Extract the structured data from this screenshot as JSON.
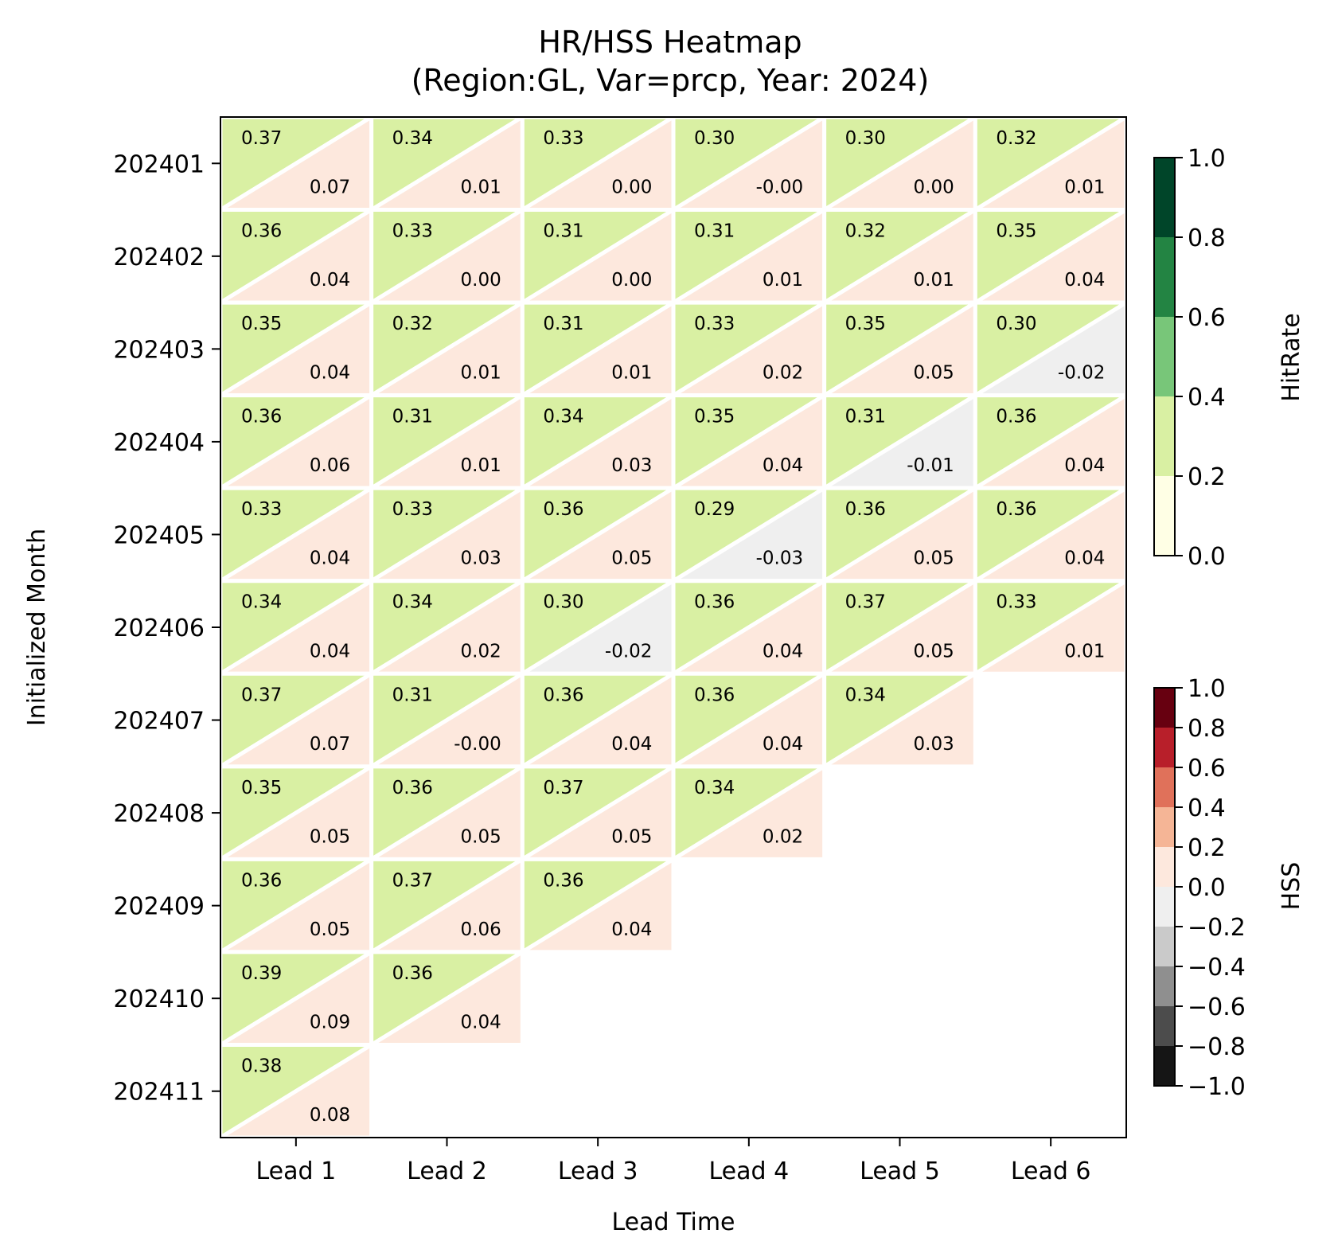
{
  "chart_data": {
    "type": "heatmap",
    "title_line1": "HR/HSS Heatmap",
    "title_line2": "(Region:GL, Var=prcp, Year: 2024)",
    "xlabel": "Lead Time",
    "ylabel": "Initialized Month",
    "x_categories": [
      "Lead 1",
      "Lead 2",
      "Lead 3",
      "Lead 4",
      "Lead 5",
      "Lead 6"
    ],
    "y_categories": [
      "202401",
      "202402",
      "202403",
      "202404",
      "202405",
      "202406",
      "202407",
      "202408",
      "202409",
      "202410",
      "202411"
    ],
    "hit_rate": [
      [
        "0.37",
        "0.34",
        "0.33",
        "0.30",
        "0.30",
        "0.32"
      ],
      [
        "0.36",
        "0.33",
        "0.31",
        "0.31",
        "0.32",
        "0.35"
      ],
      [
        "0.35",
        "0.32",
        "0.31",
        "0.33",
        "0.35",
        "0.30"
      ],
      [
        "0.36",
        "0.31",
        "0.34",
        "0.35",
        "0.31",
        "0.36"
      ],
      [
        "0.33",
        "0.33",
        "0.36",
        "0.29",
        "0.36",
        "0.36"
      ],
      [
        "0.34",
        "0.34",
        "0.30",
        "0.36",
        "0.37",
        "0.33"
      ],
      [
        "0.37",
        "0.31",
        "0.36",
        "0.36",
        "0.34",
        null
      ],
      [
        "0.35",
        "0.36",
        "0.37",
        "0.34",
        null,
        null
      ],
      [
        "0.36",
        "0.37",
        "0.36",
        null,
        null,
        null
      ],
      [
        "0.39",
        "0.36",
        null,
        null,
        null,
        null
      ],
      [
        "0.38",
        null,
        null,
        null,
        null,
        null
      ]
    ],
    "hss": [
      [
        "0.07",
        "0.01",
        "0.00",
        "-0.00",
        "0.00",
        "0.01"
      ],
      [
        "0.04",
        "0.00",
        "0.00",
        "0.01",
        "0.01",
        "0.04"
      ],
      [
        "0.04",
        "0.01",
        "0.01",
        "0.02",
        "0.05",
        "-0.02"
      ],
      [
        "0.06",
        "0.01",
        "0.03",
        "0.04",
        "-0.01",
        "0.04"
      ],
      [
        "0.04",
        "0.03",
        "0.05",
        "-0.03",
        "0.05",
        "0.04"
      ],
      [
        "0.04",
        "0.02",
        "-0.02",
        "0.04",
        "0.05",
        "0.01"
      ],
      [
        "0.07",
        "-0.00",
        "0.04",
        "0.04",
        "0.03",
        null
      ],
      [
        "0.05",
        "0.05",
        "0.05",
        "0.02",
        null,
        null
      ],
      [
        "0.05",
        "0.06",
        "0.04",
        null,
        null,
        null
      ],
      [
        "0.09",
        "0.04",
        null,
        null,
        null,
        null
      ],
      [
        "0.08",
        null,
        null,
        null,
        null,
        null
      ]
    ],
    "colorbar_hitrate": {
      "label": "HitRate",
      "range": [
        0,
        1
      ],
      "ticks": [
        "0.0",
        "0.2",
        "0.4",
        "0.6",
        "0.8",
        "1.0"
      ],
      "bins": [
        0.0,
        0.2,
        0.4,
        0.6,
        0.8,
        1.0
      ],
      "colors": [
        "#ffffe5",
        "#d9f0a3",
        "#78c679",
        "#238443",
        "#004529"
      ]
    },
    "colorbar_hss": {
      "label": "HSS",
      "range": [
        -1,
        1
      ],
      "ticks": [
        "−1.0",
        "−0.8",
        "−0.6",
        "−0.4",
        "−0.2",
        "0.0",
        "0.2",
        "0.4",
        "0.6",
        "0.8",
        "1.0"
      ],
      "bins": [
        -1.0,
        -0.8,
        -0.6,
        -0.4,
        -0.2,
        0.0,
        0.2,
        0.4,
        0.6,
        0.8,
        1.0
      ],
      "colors": [
        "#151515",
        "#4c4c4c",
        "#8f8f8f",
        "#cacaca",
        "#efefef",
        "#fde8dd",
        "#f5b596",
        "#e0715a",
        "#b81f2a",
        "#670010"
      ]
    }
  }
}
